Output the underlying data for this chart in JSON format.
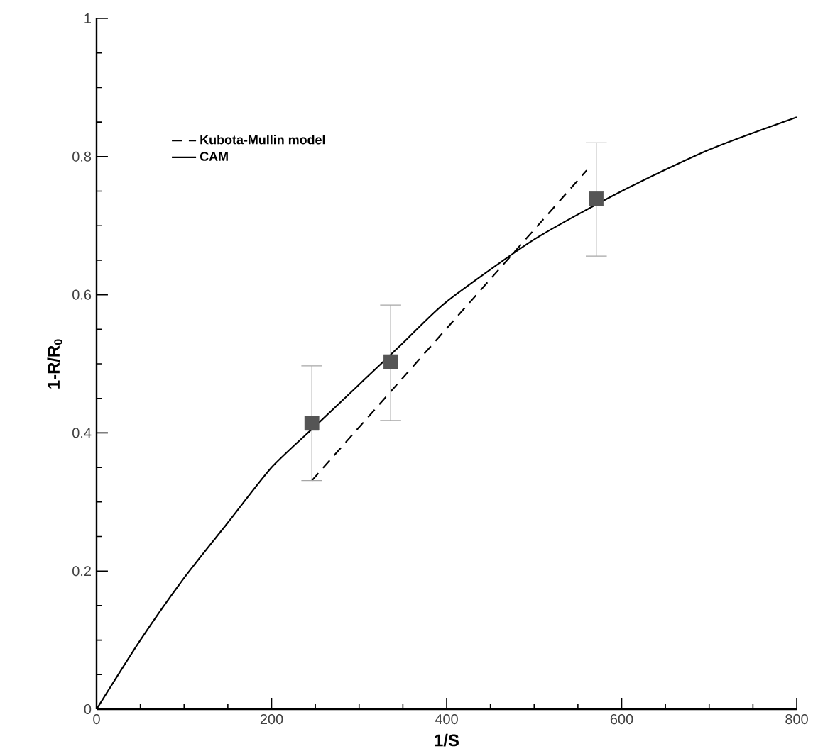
{
  "chart_data": {
    "type": "line",
    "xlabel": "1/S",
    "ylabel": "1-R/R$_{0}$",
    "xlim": [
      0,
      800
    ],
    "ylim": [
      0,
      1
    ],
    "xticks": [
      0,
      200,
      400,
      600,
      800
    ],
    "yticks": [
      0,
      0.2,
      0.4,
      0.6,
      0.8,
      1
    ],
    "grid": false,
    "legend": "top left",
    "series": [
      {
        "name": "Kubota-Mullin model",
        "color": "#000000",
        "line_style": "dashed",
        "marker": "none",
        "x": [
          246,
          560
        ],
        "values": [
          0.331,
          0.78
        ]
      },
      {
        "name": "CAM",
        "color": "#000000",
        "line_style": "solid",
        "marker": "none",
        "x": [
          0,
          50,
          100,
          150,
          200,
          250,
          300,
          350,
          400,
          500,
          600,
          700,
          800
        ],
        "values": [
          0,
          0.1,
          0.19,
          0.27,
          0.35,
          0.41,
          0.47,
          0.53,
          0.59,
          0.68,
          0.75,
          0.81,
          0.857
        ]
      },
      {
        "type": "scatter",
        "color": "#555555",
        "marker": "square",
        "x": [
          246,
          336,
          571
        ],
        "values": [
          0.414,
          0.503,
          0.739
        ],
        "errors": [
          [
            0.331,
            0.497
          ],
          [
            0.418,
            0.585
          ],
          [
            0.656,
            0.82
          ]
        ]
      }
    ]
  }
}
